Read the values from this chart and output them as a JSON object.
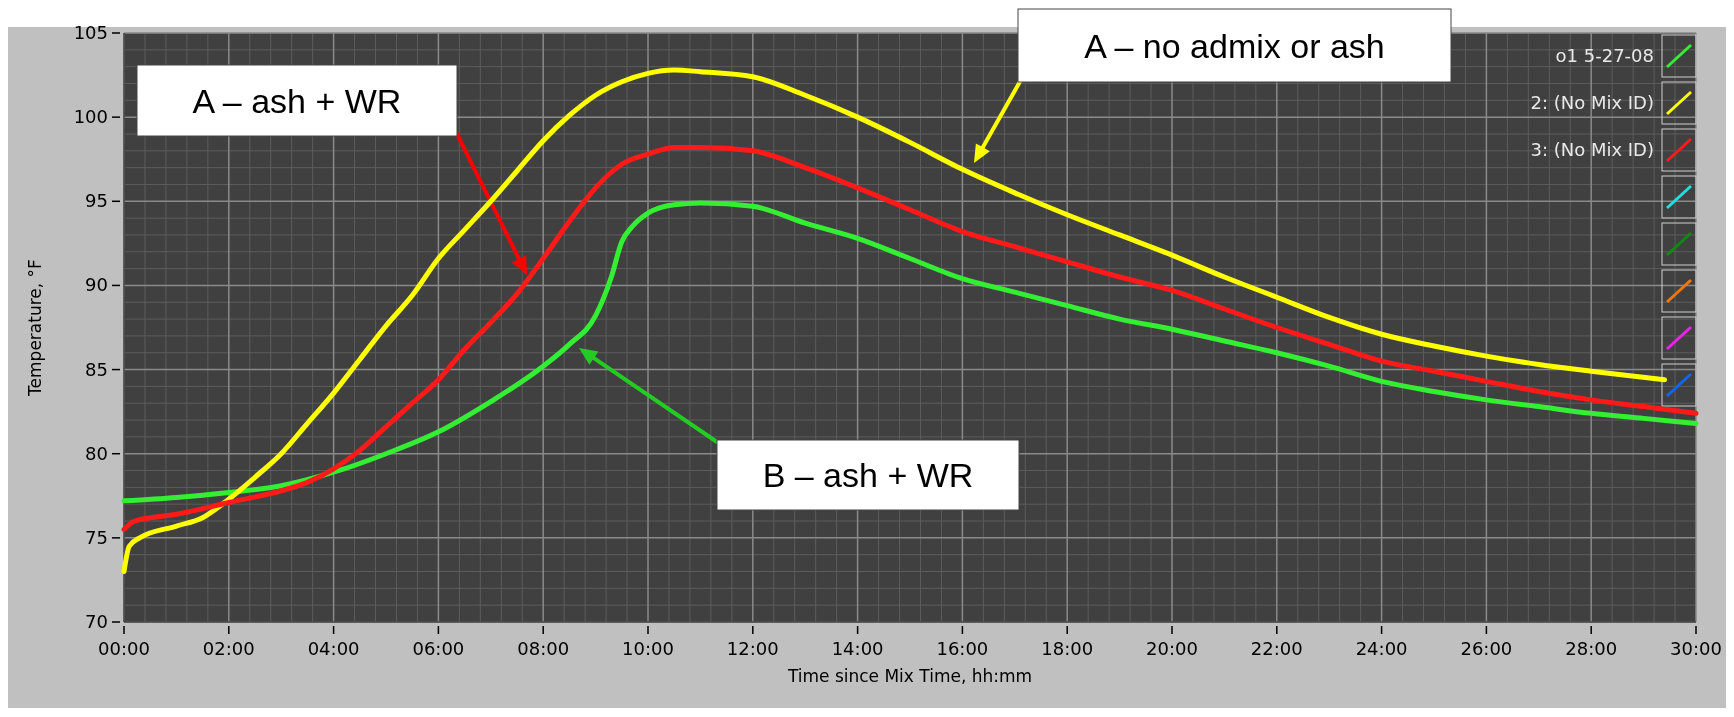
{
  "chart_data": {
    "type": "line",
    "xlabel": "Time since Mix Time, hh:mm",
    "ylabel": "Temperature, °F",
    "xlim": [
      0,
      30
    ],
    "ylim": [
      70,
      105
    ],
    "xticks": [
      {
        "value": 0,
        "label": "00:00"
      },
      {
        "value": 2,
        "label": "02:00"
      },
      {
        "value": 4,
        "label": "04:00"
      },
      {
        "value": 6,
        "label": "06:00"
      },
      {
        "value": 8,
        "label": "08:00"
      },
      {
        "value": 10,
        "label": "10:00"
      },
      {
        "value": 12,
        "label": "12:00"
      },
      {
        "value": 14,
        "label": "14:00"
      },
      {
        "value": 16,
        "label": "16:00"
      },
      {
        "value": 18,
        "label": "18:00"
      },
      {
        "value": 20,
        "label": "20:00"
      },
      {
        "value": 22,
        "label": "22:00"
      },
      {
        "value": 24,
        "label": "24:00"
      },
      {
        "value": 26,
        "label": "26:00"
      },
      {
        "value": 28,
        "label": "28:00"
      },
      {
        "value": 30,
        "label": "30:00"
      }
    ],
    "yticks": [
      70,
      75,
      80,
      85,
      90,
      95,
      100,
      105
    ],
    "grid": true,
    "legend": "top right",
    "marker": "none",
    "line_style": "solid",
    "series": [
      {
        "name": "o1 5-27-08",
        "color": "#33ee33",
        "x": [
          0,
          1,
          2,
          3,
          4,
          5,
          6,
          7,
          8,
          8.5,
          9,
          9.3,
          9.5,
          9.7,
          10,
          10.5,
          11,
          12,
          13,
          14,
          15,
          16,
          17,
          18,
          19,
          20,
          21,
          22,
          23,
          24,
          25,
          26,
          27,
          28,
          29,
          30
        ],
        "values": [
          77.2,
          77.4,
          77.7,
          78.1,
          78.9,
          80,
          81.3,
          83.1,
          85.2,
          86.5,
          88.2,
          90.5,
          92.6,
          93.5,
          94.3,
          94.8,
          94.9,
          94.7,
          93.7,
          92.8,
          91.6,
          90.4,
          89.6,
          88.8,
          88,
          87.4,
          86.7,
          86,
          85.2,
          84.3,
          83.7,
          83.2,
          82.8,
          82.4,
          82.1,
          81.8
        ]
      },
      {
        "name": "2: (No Mix ID)",
        "color": "#ffff00",
        "x": [
          0,
          0.1,
          0.3,
          1,
          1.5,
          2,
          2.5,
          3,
          3.5,
          4,
          4.5,
          5,
          5.5,
          6,
          6.5,
          7,
          7.5,
          8,
          8.5,
          9,
          9.5,
          10,
          10.5,
          11,
          12,
          13,
          14,
          15,
          16,
          17,
          18,
          19,
          20,
          21,
          22,
          23,
          24,
          25,
          26,
          27,
          28,
          29.4
        ],
        "values": [
          73,
          74.5,
          75,
          75.7,
          76.2,
          77.3,
          78.6,
          80,
          81.8,
          83.6,
          85.6,
          87.6,
          89.4,
          91.6,
          93.3,
          95,
          96.8,
          98.6,
          100.1,
          101.3,
          102.1,
          102.6,
          102.8,
          102.7,
          102.4,
          101.3,
          100,
          98.5,
          96.9,
          95.5,
          94.2,
          93,
          91.8,
          90.5,
          89.3,
          88.1,
          87.1,
          86.4,
          85.8,
          85.3,
          84.9,
          84.4
        ]
      },
      {
        "name": "3: (No Mix ID)",
        "color": "#ff1a1a",
        "x": [
          0,
          0.2,
          1,
          2,
          3,
          3.5,
          4,
          4.5,
          5,
          5.5,
          6,
          6.5,
          7,
          7.5,
          8,
          8.5,
          9,
          9.5,
          10,
          10.5,
          11,
          12,
          13,
          14,
          15,
          16,
          17,
          18,
          19,
          20,
          21,
          22,
          23,
          24,
          25,
          26,
          27,
          28,
          29,
          30
        ],
        "values": [
          75.5,
          76,
          76.4,
          77.1,
          77.8,
          78.3,
          79.1,
          80.2,
          81.6,
          83,
          84.4,
          86.2,
          87.8,
          89.5,
          91.6,
          93.8,
          95.8,
          97.2,
          97.8,
          98.2,
          98.2,
          98,
          97,
          95.8,
          94.5,
          93.2,
          92.3,
          91.4,
          90.5,
          89.7,
          88.6,
          87.5,
          86.5,
          85.5,
          84.9,
          84.3,
          83.7,
          83.2,
          82.8,
          82.4
        ]
      }
    ],
    "annotations": [
      "A – ash + WR",
      "A – no admix or ash",
      "B – ash + WR"
    ]
  }
}
